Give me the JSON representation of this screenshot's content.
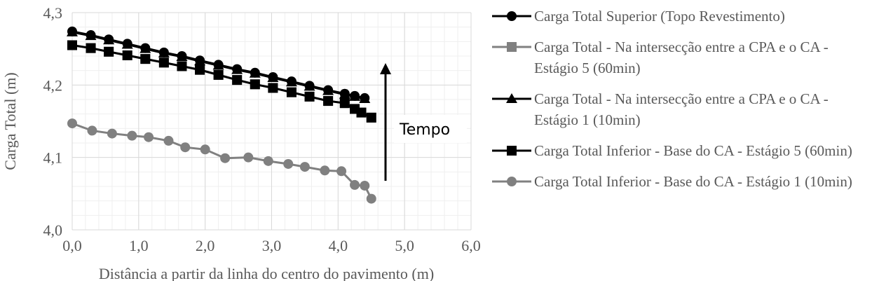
{
  "chart_data": {
    "type": "line",
    "y_label": "Carga Total (m)",
    "x_label": "Distância a partir da linha do centro do pavimento (m)",
    "annotation": "Tempo",
    "xlim": [
      0,
      6
    ],
    "xticks": [
      {
        "value": 0,
        "label": "0,0"
      },
      {
        "value": 1,
        "label": "1,0"
      },
      {
        "value": 2,
        "label": "2,0"
      },
      {
        "value": 3,
        "label": "3,0"
      },
      {
        "value": 4,
        "label": "4,0"
      },
      {
        "value": 5,
        "label": "5,0"
      },
      {
        "value": 6,
        "label": "6,0"
      }
    ],
    "ylim": [
      4.0,
      4.3
    ],
    "yticks": [
      {
        "value": 4.0,
        "label": "4,0"
      },
      {
        "value": 4.1,
        "label": "4,1"
      },
      {
        "value": 4.2,
        "label": "4,2"
      },
      {
        "value": 4.3,
        "label": "4,3"
      }
    ],
    "grid": true,
    "legend": "right",
    "series": [
      {
        "name": "Carga Total Superior (Topo Revestimento)",
        "color": "#000000",
        "marker": "circle",
        "x": [
          0.0,
          0.28,
          0.55,
          0.83,
          1.1,
          1.38,
          1.65,
          1.92,
          2.2,
          2.48,
          2.75,
          3.02,
          3.3,
          3.57,
          3.85,
          4.1,
          4.25,
          4.4
        ],
        "values": [
          4.274,
          4.269,
          4.263,
          4.257,
          4.251,
          4.245,
          4.24,
          4.234,
          4.228,
          4.222,
          4.217,
          4.211,
          4.205,
          4.199,
          4.193,
          4.188,
          4.185,
          4.182
        ]
      },
      {
        "name": "Carga Total - Na intersecção entre a CPA e o CA - Estágio 5 (60min)",
        "color": "#808080",
        "marker": "square",
        "x": [
          0.0,
          0.28,
          0.55,
          0.83,
          1.1,
          1.38,
          1.65,
          1.92,
          2.2,
          2.48,
          2.75,
          3.02,
          3.3,
          3.57,
          3.85,
          4.1,
          4.25,
          4.35,
          4.5
        ],
        "values": [
          4.255,
          4.251,
          4.246,
          4.241,
          4.236,
          4.231,
          4.226,
          4.221,
          4.214,
          4.207,
          4.201,
          4.196,
          4.19,
          4.184,
          4.178,
          4.175,
          4.167,
          4.162,
          4.155
        ]
      },
      {
        "name": "Carga Total - Na intersecção entre a CPA e o CA - Estágio 1 (10min)",
        "color": "#000000",
        "marker": "triangle",
        "x": [
          0.0,
          0.28,
          0.55,
          0.83,
          1.1,
          1.38,
          1.65,
          1.92,
          2.2,
          2.48,
          2.75,
          3.02,
          3.3,
          3.57,
          3.85,
          4.1,
          4.25,
          4.4
        ],
        "values": [
          4.273,
          4.268,
          4.262,
          4.256,
          4.25,
          4.244,
          4.239,
          4.233,
          4.227,
          4.221,
          4.216,
          4.21,
          4.204,
          4.198,
          4.192,
          4.187,
          4.184,
          4.181
        ]
      },
      {
        "name": "Carga Total Inferior - Base do CA - Estágio 5 (60min)",
        "color": "#000000",
        "marker": "square",
        "x": [
          0.0,
          0.28,
          0.55,
          0.83,
          1.1,
          1.38,
          1.65,
          1.92,
          2.2,
          2.48,
          2.75,
          3.02,
          3.3,
          3.57,
          3.85,
          4.1,
          4.25,
          4.35,
          4.5
        ],
        "values": [
          4.255,
          4.251,
          4.246,
          4.241,
          4.236,
          4.231,
          4.226,
          4.221,
          4.214,
          4.207,
          4.201,
          4.196,
          4.19,
          4.184,
          4.178,
          4.175,
          4.167,
          4.162,
          4.155
        ]
      },
      {
        "name": "Carga Total Inferior - Base do CA - Estágio 1 (10min)",
        "color": "#808080",
        "marker": "circle",
        "x": [
          0.0,
          0.3,
          0.6,
          0.9,
          1.15,
          1.45,
          1.7,
          2.0,
          2.3,
          2.65,
          2.95,
          3.25,
          3.5,
          3.8,
          4.05,
          4.25,
          4.4,
          4.5
        ],
        "values": [
          4.147,
          4.137,
          4.133,
          4.13,
          4.128,
          4.123,
          4.114,
          4.111,
          4.099,
          4.1,
          4.095,
          4.091,
          4.087,
          4.082,
          4.081,
          4.062,
          4.061,
          4.043
        ]
      }
    ]
  }
}
